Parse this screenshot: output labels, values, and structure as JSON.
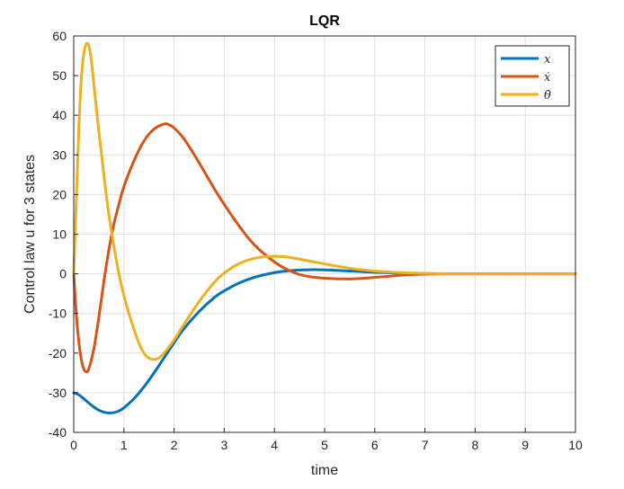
{
  "chart_data": {
    "type": "line",
    "title": "LQR",
    "xlabel": "time",
    "ylabel": "Control law u for 3 states",
    "xlim": [
      0,
      10
    ],
    "ylim": [
      -40,
      60
    ],
    "xticks": [
      0,
      1,
      2,
      3,
      4,
      5,
      6,
      7,
      8,
      9,
      10
    ],
    "yticks": [
      -40,
      -30,
      -20,
      -10,
      0,
      10,
      20,
      30,
      40,
      50,
      60
    ],
    "grid": true,
    "legend_position": "top-right",
    "series": [
      {
        "name": "x",
        "color": "#0072bd",
        "points": [
          [
            0,
            -30
          ],
          [
            0.1,
            -30.5
          ],
          [
            0.2,
            -31.5
          ],
          [
            0.3,
            -32.6
          ],
          [
            0.4,
            -33.6
          ],
          [
            0.5,
            -34.4
          ],
          [
            0.6,
            -34.9
          ],
          [
            0.7,
            -35.1
          ],
          [
            0.8,
            -35
          ],
          [
            0.9,
            -34.6
          ],
          [
            1.0,
            -33.8
          ],
          [
            1.2,
            -31.5
          ],
          [
            1.4,
            -28.5
          ],
          [
            1.6,
            -25
          ],
          [
            1.8,
            -21.2
          ],
          [
            2.0,
            -17.4
          ],
          [
            2.2,
            -13.8
          ],
          [
            2.5,
            -9.5
          ],
          [
            2.8,
            -6
          ],
          [
            3.0,
            -4.3
          ],
          [
            3.3,
            -2.3
          ],
          [
            3.6,
            -0.9
          ],
          [
            4.0,
            0.3
          ],
          [
            4.3,
            0.8
          ],
          [
            4.6,
            1.0
          ],
          [
            5.0,
            1.0
          ],
          [
            5.5,
            0.7
          ],
          [
            6.0,
            0.4
          ],
          [
            6.5,
            0.15
          ],
          [
            7.0,
            0.05
          ],
          [
            7.5,
            0
          ],
          [
            8,
            0
          ],
          [
            9,
            0
          ],
          [
            10,
            0
          ]
        ]
      },
      {
        "name": "ẋ",
        "color": "#d95319",
        "points": [
          [
            0,
            0
          ],
          [
            0.05,
            -10
          ],
          [
            0.1,
            -17
          ],
          [
            0.15,
            -21.5
          ],
          [
            0.2,
            -24
          ],
          [
            0.25,
            -24.7
          ],
          [
            0.3,
            -24
          ],
          [
            0.4,
            -19
          ],
          [
            0.5,
            -11
          ],
          [
            0.6,
            -2
          ],
          [
            0.7,
            6
          ],
          [
            0.8,
            12.5
          ],
          [
            0.9,
            17.5
          ],
          [
            1.0,
            22
          ],
          [
            1.2,
            28.5
          ],
          [
            1.4,
            33.5
          ],
          [
            1.6,
            36.5
          ],
          [
            1.8,
            37.8
          ],
          [
            1.9,
            37.6
          ],
          [
            2.0,
            36.8
          ],
          [
            2.2,
            34
          ],
          [
            2.5,
            28
          ],
          [
            2.8,
            21.5
          ],
          [
            3.0,
            17.5
          ],
          [
            3.3,
            12
          ],
          [
            3.6,
            7.3
          ],
          [
            4.0,
            3
          ],
          [
            4.3,
            0.8
          ],
          [
            4.6,
            -0.5
          ],
          [
            5.0,
            -1.1
          ],
          [
            5.5,
            -1.3
          ],
          [
            5.8,
            -1.1
          ],
          [
            6.2,
            -0.7
          ],
          [
            6.6,
            -0.3
          ],
          [
            7.0,
            -0.1
          ],
          [
            7.5,
            0
          ],
          [
            8,
            0
          ],
          [
            9,
            0
          ],
          [
            10,
            0
          ]
        ]
      },
      {
        "name": "θ̇",
        "color": "#edb120",
        "points": [
          [
            0,
            0
          ],
          [
            0.05,
            18
          ],
          [
            0.1,
            36
          ],
          [
            0.15,
            49
          ],
          [
            0.2,
            55.5
          ],
          [
            0.25,
            58
          ],
          [
            0.3,
            57.5
          ],
          [
            0.35,
            54
          ],
          [
            0.4,
            48
          ],
          [
            0.5,
            36
          ],
          [
            0.6,
            25
          ],
          [
            0.7,
            15
          ],
          [
            0.8,
            7
          ],
          [
            0.9,
            0
          ],
          [
            1.0,
            -5.5
          ],
          [
            1.1,
            -10
          ],
          [
            1.2,
            -14
          ],
          [
            1.3,
            -17.5
          ],
          [
            1.4,
            -20
          ],
          [
            1.5,
            -21.3
          ],
          [
            1.6,
            -21.6
          ],
          [
            1.7,
            -21.2
          ],
          [
            1.8,
            -20
          ],
          [
            2.0,
            -16.7
          ],
          [
            2.2,
            -12.7
          ],
          [
            2.5,
            -7
          ],
          [
            2.8,
            -2.2
          ],
          [
            3.0,
            0.2
          ],
          [
            3.3,
            2.6
          ],
          [
            3.6,
            3.9
          ],
          [
            3.9,
            4.4
          ],
          [
            4.2,
            4.3
          ],
          [
            4.5,
            3.7
          ],
          [
            5.0,
            2.5
          ],
          [
            5.5,
            1.4
          ],
          [
            6.0,
            0.7
          ],
          [
            6.5,
            0.3
          ],
          [
            7.0,
            0.1
          ],
          [
            7.5,
            0
          ],
          [
            8,
            0
          ],
          [
            9,
            0
          ],
          [
            10,
            0
          ]
        ]
      }
    ]
  }
}
